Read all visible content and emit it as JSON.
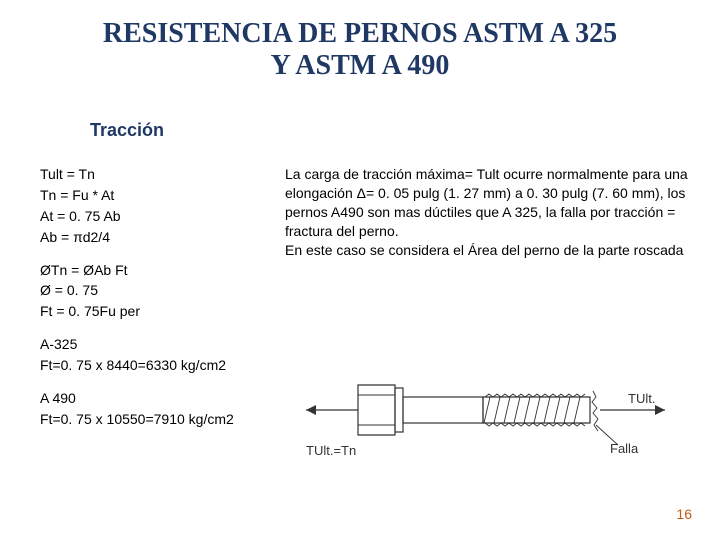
{
  "title_line1": "RESISTENCIA DE PERNOS ASTM A 325",
  "title_line2": "Y ASTM A 490",
  "subheading": "Tracción",
  "formulas_block1": [
    "Tult = Tn",
    "Tn = Fu * At",
    "At = 0. 75 Ab",
    "Ab = πd2/4"
  ],
  "formulas_block2": [
    "ØTn = ØAb Ft",
    "Ø = 0. 75",
    "Ft = 0. 75Fu per"
  ],
  "formulas_block3": [
    "A-325",
    "Ft=0. 75 x 8440=6330 kg/cm2"
  ],
  "formulas_block4": [
    "A 490",
    "Ft=0. 75 x 10550=7910 kg/cm2"
  ],
  "body_text": "La carga de tracción máxima= Tult ocurre normalmente para una elongación Δ= 0. 05 pulg (1. 27 mm) a 0. 30 pulg (7. 60 mm), los pernos A490 son mas dúctiles que A 325, la falla por tracción = fractura del perno.\nEn este caso se considera el Área del perno de la parte roscada",
  "figure": {
    "label_left": "TUlt.=Tn",
    "label_right": "TUlt.",
    "label_fail": "Falla",
    "colors": {
      "stroke": "#333333",
      "background": "#ffffff"
    }
  },
  "page_number": "16",
  "colors": {
    "title": "#1f3864",
    "subhead": "#1f3864",
    "body": "#000000",
    "pagenum": "#c55a11",
    "bg": "#ffffff"
  },
  "fonts": {
    "title_family": "Times New Roman",
    "body_family": "Arial",
    "title_size_pt": 21,
    "subhead_size_pt": 14,
    "body_size_pt": 11
  }
}
